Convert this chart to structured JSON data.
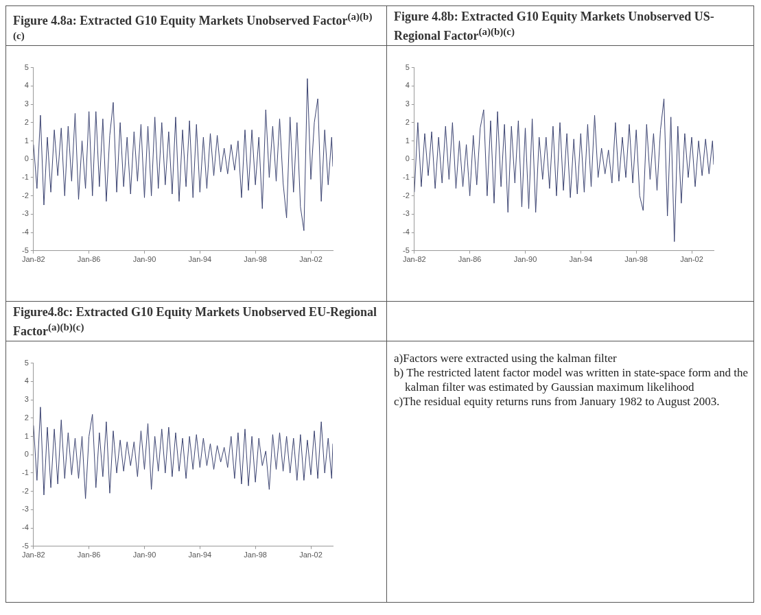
{
  "chart_data": [
    {
      "type": "line",
      "title": "Figure 4.8a: Extracted G10 Equity Markets Unobserved Factor$^{(a)(b)(c)}$",
      "x": [
        "1982-01",
        "1982-04",
        "1982-07",
        "1982-10",
        "1983-01",
        "1983-04",
        "1983-07",
        "1983-10",
        "1984-01",
        "1984-04",
        "1984-07",
        "1984-10",
        "1985-01",
        "1985-04",
        "1985-07",
        "1985-10",
        "1986-01",
        "1986-04",
        "1986-07",
        "1986-10",
        "1987-01",
        "1987-04",
        "1987-07",
        "1987-10",
        "1988-01",
        "1988-04",
        "1988-07",
        "1988-10",
        "1989-01",
        "1989-04",
        "1989-07",
        "1989-10",
        "1990-01",
        "1990-04",
        "1990-07",
        "1990-10",
        "1991-01",
        "1991-04",
        "1991-07",
        "1991-10",
        "1992-01",
        "1992-04",
        "1992-07",
        "1992-10",
        "1993-01",
        "1993-04",
        "1993-07",
        "1993-10",
        "1994-01",
        "1994-04",
        "1994-07",
        "1994-10",
        "1995-01",
        "1995-04",
        "1995-07",
        "1995-10",
        "1996-01",
        "1996-04",
        "1996-07",
        "1996-10",
        "1997-01",
        "1997-04",
        "1997-07",
        "1997-10",
        "1998-01",
        "1998-04",
        "1998-07",
        "1998-10",
        "1999-01",
        "1999-04",
        "1999-07",
        "1999-10",
        "2000-01",
        "2000-04",
        "2000-07",
        "2000-10",
        "2001-01",
        "2001-04",
        "2001-07",
        "2001-10",
        "2002-01",
        "2002-04",
        "2002-07",
        "2002-10",
        "2003-01",
        "2003-04",
        "2003-07",
        "2003-08"
      ],
      "series": [
        {
          "color": "#3a4270",
          "values": [
            0.8,
            -1.6,
            2.4,
            -2.5,
            1.2,
            -1.8,
            1.6,
            -0.9,
            1.7,
            -2.0,
            1.8,
            -1.2,
            2.5,
            -2.2,
            1.0,
            -1.6,
            2.6,
            -2.0,
            2.6,
            -1.5,
            2.2,
            -2.3,
            1.3,
            3.1,
            -1.8,
            2.0,
            -1.5,
            1.2,
            -1.9,
            1.5,
            -1.2,
            1.9,
            -2.1,
            1.8,
            -2.0,
            2.3,
            -1.6,
            2.0,
            -1.4,
            1.5,
            -1.9,
            2.3,
            -2.3,
            1.6,
            -1.5,
            2.1,
            -2.1,
            1.9,
            -1.8,
            1.2,
            -1.6,
            1.4,
            -0.9,
            1.3,
            -0.7,
            0.6,
            -0.8,
            0.8,
            -0.6,
            1.0,
            -2.1,
            1.6,
            -1.7,
            1.6,
            -1.4,
            1.2,
            -2.7,
            2.7,
            -1.0,
            1.8,
            -1.2,
            2.2,
            -1.3,
            -3.2,
            2.3,
            -1.8,
            2.0,
            -2.6,
            -3.9,
            4.4,
            -1.1,
            2.0,
            3.3,
            -2.3,
            1.6,
            -1.4,
            1.2,
            -0.4
          ]
        }
      ],
      "xlim": [
        "1982-01",
        "2003-08"
      ],
      "xticks": [
        {
          "value": "1982-01",
          "label": "Jan-82"
        },
        {
          "value": "1986-01",
          "label": "Jan-86"
        },
        {
          "value": "1990-01",
          "label": "Jan-90"
        },
        {
          "value": "1994-01",
          "label": "Jan-94"
        },
        {
          "value": "1998-01",
          "label": "Jan-98"
        },
        {
          "value": "2002-01",
          "label": "Jan-02"
        }
      ],
      "ylim": [
        -5,
        5
      ],
      "yticks": [
        -5,
        -4,
        -3,
        -2,
        -1,
        0,
        1,
        2,
        3,
        4,
        5
      ],
      "grid": false,
      "legend": false
    },
    {
      "type": "line",
      "title": "Figure 4.8b: Extracted G10 Equity Markets Unobserved US-Regional Factor$^{(a)(b)(c)}$",
      "x": [
        "1982-01",
        "1982-04",
        "1982-07",
        "1982-10",
        "1983-01",
        "1983-04",
        "1983-07",
        "1983-10",
        "1984-01",
        "1984-04",
        "1984-07",
        "1984-10",
        "1985-01",
        "1985-04",
        "1985-07",
        "1985-10",
        "1986-01",
        "1986-04",
        "1986-07",
        "1986-10",
        "1987-01",
        "1987-04",
        "1987-07",
        "1987-10",
        "1988-01",
        "1988-04",
        "1988-07",
        "1988-10",
        "1989-01",
        "1989-04",
        "1989-07",
        "1989-10",
        "1990-01",
        "1990-04",
        "1990-07",
        "1990-10",
        "1991-01",
        "1991-04",
        "1991-07",
        "1991-10",
        "1992-01",
        "1992-04",
        "1992-07",
        "1992-10",
        "1993-01",
        "1993-04",
        "1993-07",
        "1993-10",
        "1994-01",
        "1994-04",
        "1994-07",
        "1994-10",
        "1995-01",
        "1995-04",
        "1995-07",
        "1995-10",
        "1996-01",
        "1996-04",
        "1996-07",
        "1996-10",
        "1997-01",
        "1997-04",
        "1997-07",
        "1997-10",
        "1998-01",
        "1998-04",
        "1998-07",
        "1998-10",
        "1999-01",
        "1999-04",
        "1999-07",
        "1999-10",
        "2000-01",
        "2000-04",
        "2000-07",
        "2000-10",
        "2001-01",
        "2001-04",
        "2001-07",
        "2001-10",
        "2002-01",
        "2002-04",
        "2002-07",
        "2002-10",
        "2003-01",
        "2003-04",
        "2003-07",
        "2003-08"
      ],
      "series": [
        {
          "color": "#3a4270",
          "values": [
            -1.8,
            2.0,
            -1.5,
            1.4,
            -0.9,
            1.5,
            -1.6,
            1.2,
            -1.3,
            1.8,
            -1.1,
            2.0,
            -1.6,
            1.0,
            -1.5,
            0.8,
            -2.0,
            1.3,
            -1.4,
            1.7,
            2.7,
            -2.0,
            2.1,
            -2.4,
            2.6,
            -1.5,
            1.9,
            -2.9,
            1.8,
            -1.3,
            2.1,
            -2.6,
            1.7,
            -2.7,
            2.2,
            -2.9,
            1.2,
            -1.1,
            1.2,
            -1.6,
            1.8,
            -2.0,
            2.0,
            -1.7,
            1.4,
            -2.1,
            1.1,
            -1.9,
            1.4,
            -1.8,
            1.9,
            -1.5,
            2.4,
            -1.0,
            0.6,
            -0.8,
            0.5,
            -1.3,
            2.0,
            -1.2,
            1.2,
            -1.0,
            1.9,
            -1.3,
            1.6,
            -2.0,
            -2.8,
            1.9,
            -1.1,
            1.4,
            -1.7,
            1.6,
            3.3,
            -3.1,
            2.3,
            -4.5,
            1.8,
            -2.4,
            1.4,
            -1.0,
            1.2,
            -1.5,
            1.0,
            -0.9,
            1.1,
            -0.8,
            1.0,
            -0.3
          ]
        }
      ],
      "xlim": [
        "1982-01",
        "2003-08"
      ],
      "xticks": [
        {
          "value": "1982-01",
          "label": "Jan-82"
        },
        {
          "value": "1986-01",
          "label": "Jan-86"
        },
        {
          "value": "1990-01",
          "label": "Jan-90"
        },
        {
          "value": "1994-01",
          "label": "Jan-94"
        },
        {
          "value": "1998-01",
          "label": "Jan-98"
        },
        {
          "value": "2002-01",
          "label": "Jan-02"
        }
      ],
      "ylim": [
        -5,
        5
      ],
      "yticks": [
        -5,
        -4,
        -3,
        -2,
        -1,
        0,
        1,
        2,
        3,
        4,
        5
      ],
      "grid": false,
      "legend": false
    },
    {
      "type": "line",
      "title": "Figure4.8c: Extracted G10 Equity Markets Unobserved EU-Regional Factor$^{(a)(b)(c)}$",
      "x": [
        "1982-01",
        "1982-04",
        "1982-07",
        "1982-10",
        "1983-01",
        "1983-04",
        "1983-07",
        "1983-10",
        "1984-01",
        "1984-04",
        "1984-07",
        "1984-10",
        "1985-01",
        "1985-04",
        "1985-07",
        "1985-10",
        "1986-01",
        "1986-04",
        "1986-07",
        "1986-10",
        "1987-01",
        "1987-04",
        "1987-07",
        "1987-10",
        "1988-01",
        "1988-04",
        "1988-07",
        "1988-10",
        "1989-01",
        "1989-04",
        "1989-07",
        "1989-10",
        "1990-01",
        "1990-04",
        "1990-07",
        "1990-10",
        "1991-01",
        "1991-04",
        "1991-07",
        "1991-10",
        "1992-01",
        "1992-04",
        "1992-07",
        "1992-10",
        "1993-01",
        "1993-04",
        "1993-07",
        "1993-10",
        "1994-01",
        "1994-04",
        "1994-07",
        "1994-10",
        "1995-01",
        "1995-04",
        "1995-07",
        "1995-10",
        "1996-01",
        "1996-04",
        "1996-07",
        "1996-10",
        "1997-01",
        "1997-04",
        "1997-07",
        "1997-10",
        "1998-01",
        "1998-04",
        "1998-07",
        "1998-10",
        "1999-01",
        "1999-04",
        "1999-07",
        "1999-10",
        "2000-01",
        "2000-04",
        "2000-07",
        "2000-10",
        "2001-01",
        "2001-04",
        "2001-07",
        "2001-10",
        "2002-01",
        "2002-04",
        "2002-07",
        "2002-10",
        "2003-01",
        "2003-04",
        "2003-07",
        "2003-08"
      ],
      "series": [
        {
          "color": "#3a4270",
          "values": [
            1.6,
            -1.4,
            2.6,
            -2.2,
            1.5,
            -1.8,
            1.4,
            -1.6,
            1.9,
            -1.3,
            1.2,
            -1.1,
            0.9,
            -1.3,
            1.0,
            -2.4,
            1.0,
            2.2,
            -1.8,
            1.2,
            -1.2,
            1.8,
            -2.1,
            1.3,
            -1.0,
            0.8,
            -0.9,
            0.7,
            -0.6,
            0.7,
            -1.2,
            1.3,
            -0.8,
            1.7,
            -1.9,
            1.0,
            -0.9,
            1.4,
            -1.0,
            1.5,
            -1.2,
            1.2,
            -0.9,
            0.9,
            -1.3,
            1.0,
            -0.8,
            1.1,
            -0.7,
            0.9,
            -0.6,
            0.6,
            -0.8,
            0.5,
            -0.4,
            0.4,
            -0.7,
            1.0,
            -1.3,
            1.2,
            -1.6,
            1.4,
            -1.7,
            1.0,
            -1.5,
            0.9,
            -0.6,
            0.2,
            -1.9,
            1.1,
            -0.8,
            1.2,
            -0.9,
            1.0,
            -1.0,
            0.9,
            -1.4,
            1.1,
            -1.4,
            0.8,
            -1.1,
            1.3,
            -1.3,
            1.8,
            -1.0,
            0.9,
            -1.3,
            0.6
          ]
        }
      ],
      "xlim": [
        "1982-01",
        "2003-08"
      ],
      "xticks": [
        {
          "value": "1982-01",
          "label": "Jan-82"
        },
        {
          "value": "1986-01",
          "label": "Jan-86"
        },
        {
          "value": "1990-01",
          "label": "Jan-90"
        },
        {
          "value": "1994-01",
          "label": "Jan-94"
        },
        {
          "value": "1998-01",
          "label": "Jan-98"
        },
        {
          "value": "2002-01",
          "label": "Jan-02"
        }
      ],
      "ylim": [
        -5,
        5
      ],
      "yticks": [
        -5,
        -4,
        -3,
        -2,
        -1,
        0,
        1,
        2,
        3,
        4,
        5
      ],
      "grid": false,
      "legend": false
    },
    {
      "type": "other",
      "annotations": [
        "a)Factors were extracted using the kalman filter",
        "b) The restricted latent factor model was written in state-space form and the kalman filter was estimated by Gaussian maximum likelihood",
        "c)The residual equity returns runs from January 1982 to August 2003."
      ]
    }
  ]
}
